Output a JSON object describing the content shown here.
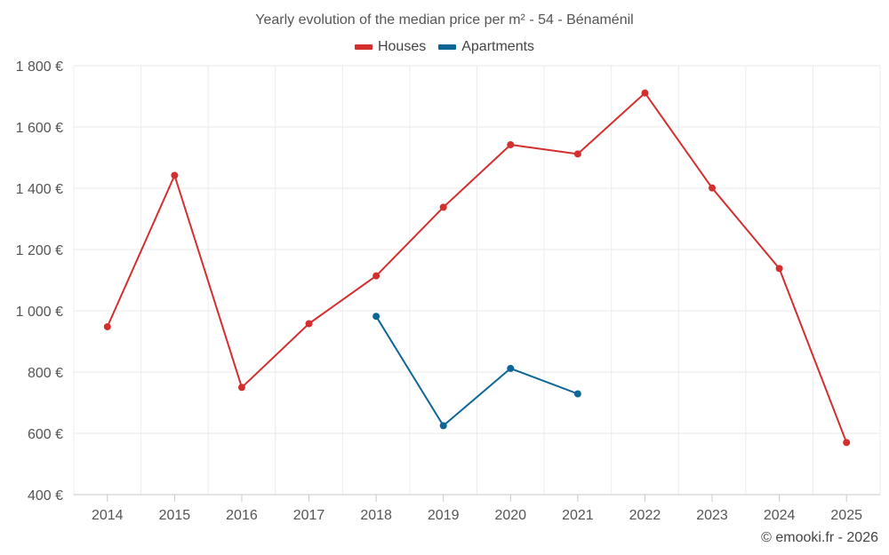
{
  "chart_data": {
    "type": "line",
    "title": "Yearly evolution of the median price per m² - 54 - Bénaménil",
    "categories": [
      "2014",
      "2015",
      "2016",
      "2017",
      "2018",
      "2019",
      "2020",
      "2021",
      "2022",
      "2023",
      "2024",
      "2025"
    ],
    "ylim": [
      400,
      1800
    ],
    "yticks": [
      400,
      600,
      800,
      1000,
      1200,
      1400,
      1600,
      1800
    ],
    "ytick_labels": [
      "400 €",
      "600 €",
      "800 €",
      "1 000 €",
      "1 200 €",
      "1 400 €",
      "1 600 €",
      "1 800 €"
    ],
    "grid": true,
    "legend": "top-center",
    "series": [
      {
        "name": "Houses",
        "color": "#d32f2f",
        "values": [
          948,
          1442,
          750,
          958,
          1114,
          1338,
          1542,
          1512,
          1711,
          1401,
          1138,
          570
        ]
      },
      {
        "name": "Apartments",
        "color": "#0d6696",
        "values": [
          null,
          null,
          null,
          null,
          982,
          625,
          812,
          729,
          null,
          null,
          null,
          null
        ]
      }
    ]
  },
  "credit": "© emooki.fr - 2026"
}
